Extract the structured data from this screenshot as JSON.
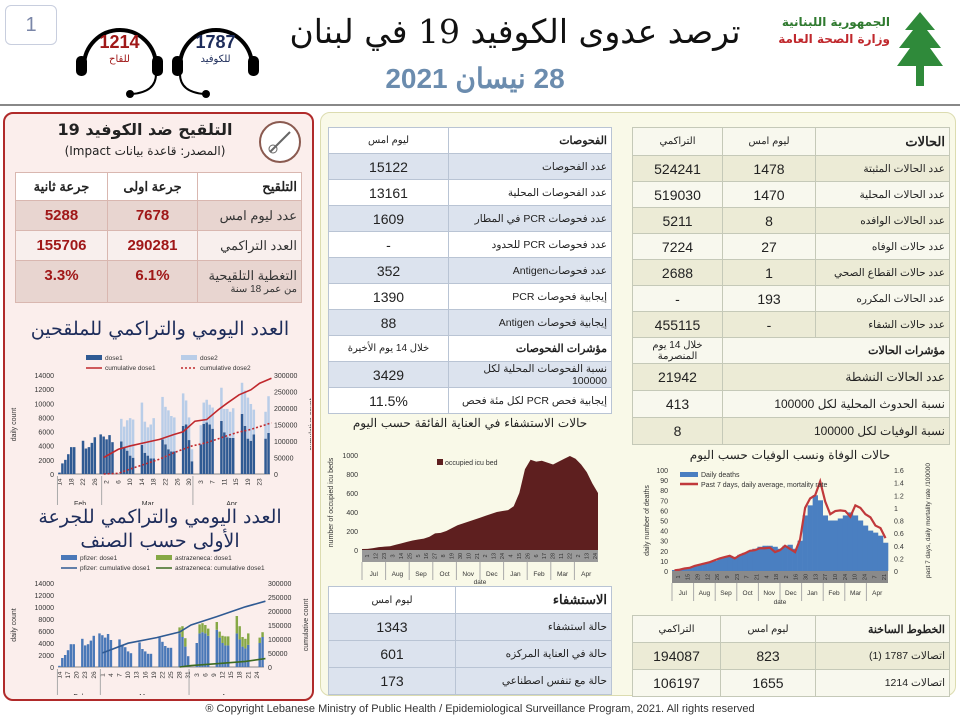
{
  "page_number": "1",
  "hotlines": [
    {
      "number": "1214",
      "label": "للقاح",
      "color": "#a01818"
    },
    {
      "number": "1787",
      "label": "للكوفيد",
      "color": "#1d2c5a"
    }
  ],
  "header": {
    "title": "ترصد عدوى الكوفيد 19 في لبنان",
    "date": "28 نيسان 2021",
    "logo_line1": "الجمهورية اللبنانية",
    "logo_line2": "وزارة الصحة العامة"
  },
  "vaccination": {
    "title": "التلقيح ضد الكوفيد 19",
    "source": "(المصدر: قاعدة بيانات Impact)",
    "headers": [
      "التلقيح",
      "جرعة اولى",
      "جرعة ثانية"
    ],
    "rows": [
      {
        "label": "عدد ليوم امس",
        "dose1": "7678",
        "dose2": "5288"
      },
      {
        "label": "العدد التراكمي",
        "dose1": "290281",
        "dose2": "155706"
      },
      {
        "label": "التغطية التلقيحية",
        "sublabel": "من عمر 18 سنة",
        "dose1": "6.1%",
        "dose2": "3.3%"
      }
    ]
  },
  "tests": {
    "headers": [
      "الفحوصات",
      "ليوم امس"
    ],
    "rows": [
      {
        "label": "عدد الفحوصات",
        "value": "15122"
      },
      {
        "label": "عدد الفحوصات المحلية",
        "value": "13161"
      },
      {
        "label": "عدد فحوصات PCR في المطار",
        "value": "1609"
      },
      {
        "label": "عدد فحوصات PCR للحدود",
        "value": "-"
      },
      {
        "label": "عدد فحوصاتAntigen",
        "value": "352"
      },
      {
        "label": "إيجابية فحوصات PCR",
        "value": "1390"
      },
      {
        "label": "إيجابية فحوصات Antigen",
        "value": "88"
      }
    ],
    "indicators_header": [
      "مؤشرات الفحوصات",
      "خلال 14 يوم الأخيرة"
    ],
    "indicators": [
      {
        "label": "نسبة الفحوصات المحلية لكل 100000",
        "value": "3429"
      },
      {
        "label": "إيجابية فحص PCR لكل مئة فحص",
        "value": "11.5%"
      }
    ]
  },
  "cases": {
    "headers": [
      "الحالات",
      "ليوم امس",
      "التراكمي"
    ],
    "rows": [
      {
        "label": "عدد الحالات المثبتة",
        "yesterday": "1478",
        "cumulative": "524241"
      },
      {
        "label": "عدد الحالات المحلية",
        "yesterday": "1470",
        "cumulative": "519030"
      },
      {
        "label": "عدد الحالات الوافده",
        "yesterday": "8",
        "cumulative": "5211"
      },
      {
        "label": "عدد حالات الوفاه",
        "yesterday": "27",
        "cumulative": "7224"
      },
      {
        "label": "عدد حالات القطاع الصحي",
        "yesterday": "1",
        "cumulative": "2688"
      },
      {
        "label": "عدد الحالات المكرره",
        "yesterday": "193",
        "cumulative": "-"
      },
      {
        "label": "عدد حالات الشفاء",
        "yesterday": "-",
        "cumulative": "455115"
      }
    ],
    "indicators_header": [
      "مؤشرات الحالات",
      "خلال 14 يوم المنصرمة"
    ],
    "indicators": [
      {
        "label": "عدد الحالات النشطة",
        "value": "21942"
      },
      {
        "label": "نسبة الحدوث المحلية لكل 100000",
        "value": "413"
      },
      {
        "label": "نسبة الوفيات لكل 100000",
        "value": "8"
      }
    ]
  },
  "hospital": {
    "headers": [
      "الاستشفاء",
      "ليوم امس"
    ],
    "rows": [
      {
        "label": "حالة استشفاء",
        "value": "1343"
      },
      {
        "label": "حالة في العناية المركزه",
        "value": "601"
      },
      {
        "label": "حالة مع تنفس اصطناعي",
        "value": "173"
      }
    ]
  },
  "hotline_table": {
    "headers": [
      "الخطوط الساخنة",
      "ليوم امس",
      "التراكمي"
    ],
    "rows": [
      {
        "label": "اتصالات 1787 (1)",
        "yesterday": "823",
        "cumulative": "194087"
      },
      {
        "label": "اتصالات 1214",
        "yesterday": "1655",
        "cumulative": "106197"
      }
    ]
  },
  "footer": "® Copyright Lebanese Ministry of Public Health / Epidemiological Surveillance Program, 2021. All rights reserved",
  "chart_data": [
    {
      "id": "vacc-daily",
      "type": "bar",
      "title": "العدد اليومي والتراكمي للملقحين",
      "start_date": "02-14",
      "ylabel": "daily count",
      "y2label": "cumulative count",
      "ylim": [
        0,
        14000
      ],
      "y2lim": [
        0,
        300000
      ],
      "months": [
        "Feb",
        "Mar",
        "Apr"
      ],
      "series": [
        {
          "name": "dose1",
          "kind": "bar",
          "color": "#2f5a93",
          "values": [
            200,
            1500,
            2000,
            2800,
            3800,
            3800,
            0,
            0,
            4700,
            3600,
            3800,
            4400,
            5200,
            0,
            5600,
            5300,
            4900,
            5500,
            4500,
            0,
            0,
            4600,
            3700,
            3300,
            2600,
            2300,
            0,
            0,
            4100,
            3000,
            2600,
            2200,
            2200,
            0,
            0,
            4900,
            4200,
            3500,
            3200,
            3200,
            0,
            0,
            6800,
            7000,
            4800,
            1800,
            0,
            0,
            4200,
            7100,
            7300,
            7000,
            6400,
            0,
            0,
            7500,
            5900,
            5200,
            5100,
            5100,
            0,
            0,
            8500,
            6800,
            5000,
            4700,
            5600,
            0,
            0,
            0,
            5000,
            5800
          ]
        },
        {
          "name": "dose2",
          "kind": "bar",
          "color": "#b9cde8",
          "values": [
            0,
            0,
            0,
            0,
            0,
            0,
            0,
            0,
            0,
            0,
            0,
            0,
            0,
            0,
            0,
            0,
            0,
            0,
            0,
            0,
            0,
            3200,
            3000,
            4300,
            5300,
            5400,
            0,
            0,
            6000,
            4400,
            4000,
            4800,
            5700,
            0,
            0,
            6000,
            5300,
            5500,
            5000,
            4800,
            0,
            0,
            4600,
            3400,
            3200,
            1700,
            0,
            0,
            2700,
            3000,
            3200,
            2800,
            3000,
            0,
            0,
            4700,
            3300,
            4000,
            3700,
            4200,
            0,
            0,
            4400,
            5000,
            5800,
            5200,
            3500,
            0,
            0,
            0,
            3800,
            5200
          ]
        },
        {
          "name": "cumulative dose1",
          "kind": "line",
          "axis": "y2",
          "color": "#c0282d",
          "points": [
            [
              "03-01",
              50000
            ],
            [
              "03-06",
              75000
            ],
            [
              "03-10",
              85000
            ],
            [
              "03-15",
              95000
            ],
            [
              "03-20",
              105000
            ],
            [
              "03-25",
              120000
            ],
            [
              "03-28",
              128000
            ],
            [
              "04-01",
              160000
            ],
            [
              "04-05",
              165000
            ],
            [
              "04-09",
              195000
            ],
            [
              "04-12",
              215000
            ],
            [
              "04-16",
              240000
            ],
            [
              "04-20",
              255000
            ],
            [
              "04-23",
              275000
            ],
            [
              "04-27",
              290000
            ]
          ]
        },
        {
          "name": "cumulative dose2",
          "kind": "line",
          "axis": "y2",
          "dash": true,
          "color": "#c0282d",
          "points": [
            [
              "03-01",
              0
            ],
            [
              "03-06",
              2000
            ],
            [
              "03-10",
              15000
            ],
            [
              "03-15",
              30000
            ],
            [
              "03-20",
              45000
            ],
            [
              "03-25",
              65000
            ],
            [
              "03-31",
              85000
            ],
            [
              "04-05",
              95000
            ],
            [
              "04-10",
              110000
            ],
            [
              "04-15",
              125000
            ],
            [
              "04-20",
              135000
            ],
            [
              "04-27",
              155000
            ]
          ]
        }
      ]
    },
    {
      "id": "vacc-brand",
      "type": "bar",
      "title": "العدد اليومي والتراكمي للجرعة الأولى حسب الصنف",
      "start_date": "02-14",
      "ylabel": "daily count",
      "y2label": "cumulative count",
      "ylim": [
        0,
        14000
      ],
      "y2lim": [
        0,
        300000
      ],
      "months": [
        "Feb",
        "Mar",
        "Apr"
      ],
      "series": [
        {
          "name": "pfizer: dose1",
          "kind": "bar",
          "color": "#4a78b8",
          "values": [
            200,
            1500,
            2000,
            2800,
            3800,
            3800,
            0,
            0,
            4700,
            3600,
            3800,
            4400,
            5200,
            0,
            5600,
            5300,
            4900,
            5500,
            4500,
            0,
            0,
            4600,
            3700,
            3300,
            2600,
            2300,
            0,
            0,
            4100,
            3000,
            2600,
            2200,
            2200,
            0,
            0,
            4900,
            4200,
            3500,
            3200,
            3200,
            0,
            0,
            5600,
            5000,
            3400,
            1800,
            0,
            0,
            4000,
            5600,
            5800,
            5600,
            5200,
            0,
            0,
            6200,
            4900,
            4000,
            3600,
            3600,
            0,
            0,
            5600,
            4600,
            3400,
            3100,
            3700,
            0,
            0,
            0,
            4000,
            5000
          ]
        },
        {
          "name": "astrazeneca: dose1",
          "kind": "bar",
          "color": "#86a845",
          "values": [
            0,
            0,
            0,
            0,
            0,
            0,
            0,
            0,
            0,
            0,
            0,
            0,
            0,
            0,
            0,
            0,
            0,
            0,
            0,
            0,
            0,
            0,
            0,
            0,
            0,
            0,
            0,
            0,
            0,
            0,
            0,
            0,
            0,
            0,
            0,
            0,
            0,
            0,
            0,
            0,
            0,
            0,
            1000,
            1800,
            1400,
            0,
            0,
            0,
            0,
            1500,
            1500,
            1400,
            1200,
            0,
            0,
            1300,
            1000,
            1200,
            1500,
            1500,
            0,
            0,
            2900,
            2200,
            1600,
            1600,
            1900,
            0,
            0,
            0,
            900,
            800
          ]
        },
        {
          "name": "pfizer: cumulative dose1",
          "kind": "line",
          "axis": "y2",
          "color": "#2f5a93",
          "points": [
            [
              "03-01",
              50000
            ],
            [
              "03-10",
              85000
            ],
            [
              "03-20",
              105000
            ],
            [
              "03-28",
              125000
            ],
            [
              "04-01",
              150000
            ],
            [
              "04-10",
              180000
            ],
            [
              "04-20",
              215000
            ],
            [
              "04-27",
              235000
            ]
          ]
        },
        {
          "name": "astrazeneca: cumulative dose1",
          "kind": "line",
          "axis": "y2",
          "color": "#3d6b22",
          "points": [
            [
              "03-28",
              0
            ],
            [
              "04-01",
              5000
            ],
            [
              "04-10",
              12000
            ],
            [
              "04-20",
              20000
            ],
            [
              "04-27",
              30000
            ]
          ]
        }
      ]
    },
    {
      "id": "icu",
      "type": "area",
      "title": "حالات الاستشفاء في العناية الفائقة حسب اليوم",
      "ylabel": "number of occupied icu beds",
      "xlabel": "date",
      "ylim": [
        0,
        1000
      ],
      "yticks": [
        0,
        200,
        400,
        600,
        800,
        1000
      ],
      "months": [
        "Jul",
        "Aug",
        "Sep",
        "Oct",
        "Nov",
        "Dec",
        "Jan",
        "Feb",
        "Mar",
        "Apr"
      ],
      "ticklabels": [
        "1",
        "12",
        "23",
        "3",
        "14",
        "25",
        "5",
        "16",
        "27",
        "8",
        "19",
        "30",
        "10",
        "21",
        "2",
        "13",
        "24",
        "4",
        "15",
        "26",
        "6",
        "17",
        "28",
        "11",
        "22",
        "2",
        "13",
        "24"
      ],
      "series": [
        {
          "name": "occupied icu bed",
          "color": "#5e1f1f",
          "values": [
            10,
            12,
            20,
            30,
            35,
            40,
            55,
            70,
            85,
            100,
            110,
            120,
            140,
            175,
            180,
            200,
            230,
            260,
            280,
            300,
            320,
            340,
            360,
            380,
            400,
            410,
            420,
            460,
            600,
            850,
            950,
            930,
            940,
            920,
            900,
            930,
            960,
            990,
            960,
            900,
            820,
            700,
            600
          ]
        }
      ]
    },
    {
      "id": "deaths",
      "type": "bar",
      "title": "حالات الوفاة ونسب الوفيات حسب اليوم",
      "ylabel": "daily number of deaths",
      "y2label": "past 7 days, daily mortality rate /100000",
      "xlabel": "date",
      "ylim": [
        0,
        100
      ],
      "y2lim": [
        0,
        1.6
      ],
      "yticks": [
        0,
        10,
        20,
        30,
        40,
        50,
        60,
        70,
        80,
        90,
        100
      ],
      "y2ticks": [
        0,
        0.2,
        0.4,
        0.6,
        0.8,
        1,
        1.2,
        1.4,
        1.6
      ],
      "months": [
        "Jul",
        "Aug",
        "Sep",
        "Oct",
        "Nov",
        "Dec",
        "Jan",
        "Feb",
        "Mar",
        "Apr"
      ],
      "ticklabels": [
        "1",
        "15",
        "29",
        "12",
        "26",
        "9",
        "23",
        "7",
        "21",
        "4",
        "18",
        "2",
        "16",
        "30",
        "13",
        "27",
        "10",
        "24",
        "10",
        "24",
        "7",
        "21"
      ],
      "series": [
        {
          "name": "Daily deaths",
          "kind": "bar",
          "color": "#4a7fc1",
          "values": [
            1,
            2,
            3,
            3,
            5,
            6,
            8,
            9,
            10,
            12,
            14,
            15,
            14,
            16,
            18,
            20,
            22,
            24,
            25,
            25,
            24,
            22,
            25,
            26,
            22,
            30,
            55,
            65,
            75,
            70,
            55,
            50,
            50,
            52,
            55,
            58,
            55,
            50,
            45,
            40,
            38,
            35,
            28
          ]
        },
        {
          "name": "Past 7 days, daily average, mortality rate",
          "kind": "line",
          "color": "#c0393b",
          "values": [
            0.01,
            0.02,
            0.04,
            0.05,
            0.08,
            0.1,
            0.12,
            0.14,
            0.17,
            0.2,
            0.22,
            0.24,
            0.2,
            0.25,
            0.28,
            0.32,
            0.33,
            0.36,
            0.36,
            0.37,
            0.3,
            0.33,
            0.4,
            0.35,
            0.3,
            0.5,
            1.0,
            1.15,
            1.2,
            1.42,
            1.1,
            0.9,
            0.95,
            0.96,
            0.95,
            0.86,
            1.04,
            1.0,
            0.9,
            0.85,
            0.72,
            0.68,
            0.52
          ]
        }
      ]
    }
  ]
}
